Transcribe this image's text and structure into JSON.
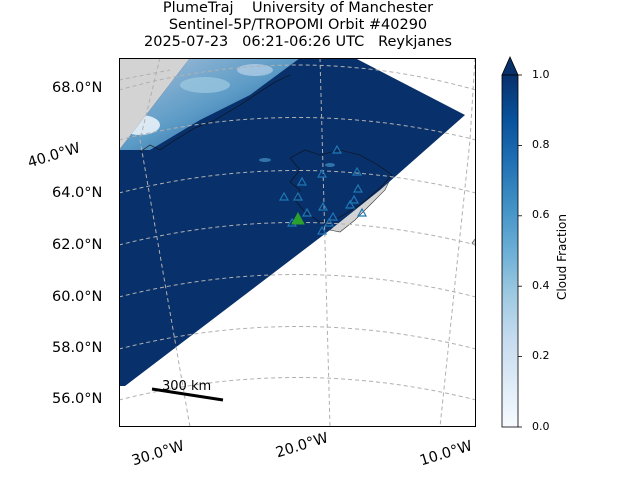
{
  "title": {
    "line1": "PlumeTraj    University of Manchester",
    "line2": "Sentinel-5P/TROPOMI Orbit #40290",
    "line3": "2025-07-23   06:21-06:26 UTC   Reykjanes"
  },
  "map": {
    "lat_labels": [
      "68.0°N",
      "64.0°N",
      "62.0°N",
      "60.0°N",
      "58.0°N",
      "56.0°N"
    ],
    "side_lon_label": "40.0°W",
    "lon_labels": [
      "30.0°W",
      "20.0°W",
      "10.0°W"
    ],
    "scale_bar_label": "300 km",
    "swath_color": "#08306b",
    "land_color": "#d3d3d3",
    "volcano_marker_color": "#2ca02c",
    "station_marker_color": "#1f77b4"
  },
  "colorbar": {
    "label": "Cloud Fraction",
    "ticks": [
      "1.0",
      "0.8",
      "0.6",
      "0.4",
      "0.2",
      "0.0"
    ],
    "range": [
      0.0,
      1.0
    ],
    "colormap": "Blues",
    "color_low": "#f7fbff",
    "color_high": "#08306b"
  }
}
